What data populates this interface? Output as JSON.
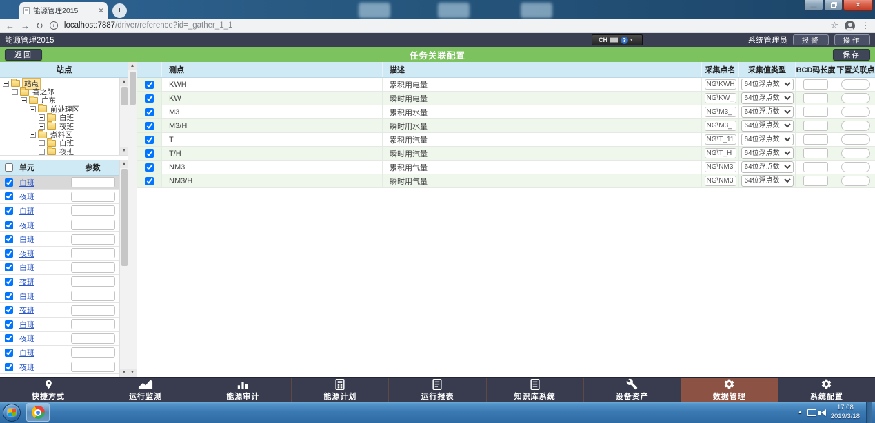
{
  "browser": {
    "tab_title": "能源管理2015",
    "url_host": "localhost:7887",
    "url_path": "/driver/reference?id=_gather_1_1"
  },
  "app_header": {
    "app_title": "能源管理2015",
    "user_role": "系统管理员",
    "alarm_button": "报警",
    "action_button": "操作",
    "ime_lang": "CH"
  },
  "toolbar": {
    "back_button": "返回",
    "page_title": "任务关联配置",
    "save_button": "保存"
  },
  "site_panel": {
    "header": "站点",
    "tree": [
      {
        "label": "站点",
        "level": 0,
        "selected": true
      },
      {
        "label": "喜之郎",
        "level": 1,
        "selected": false
      },
      {
        "label": "广东",
        "level": 2,
        "selected": false
      },
      {
        "label": "前处理区",
        "level": 3,
        "selected": false
      },
      {
        "label": "白班",
        "level": 4,
        "selected": false
      },
      {
        "label": "夜班",
        "level": 4,
        "selected": false
      },
      {
        "label": "煮料区",
        "level": 3,
        "selected": false
      },
      {
        "label": "白班",
        "level": 4,
        "selected": false
      },
      {
        "label": "夜班",
        "level": 4,
        "selected": false
      }
    ]
  },
  "unit_table": {
    "headers": {
      "unit": "单元",
      "param": "参数"
    },
    "rows": [
      {
        "unit": "白班",
        "checked": true,
        "selected": true
      },
      {
        "unit": "夜班",
        "checked": true,
        "selected": false
      },
      {
        "unit": "白班",
        "checked": true,
        "selected": false
      },
      {
        "unit": "夜班",
        "checked": true,
        "selected": false
      },
      {
        "unit": "白班",
        "checked": true,
        "selected": false
      },
      {
        "unit": "夜班",
        "checked": true,
        "selected": false
      },
      {
        "unit": "白班",
        "checked": true,
        "selected": false
      },
      {
        "unit": "夜班",
        "checked": true,
        "selected": false
      },
      {
        "unit": "白班",
        "checked": true,
        "selected": false
      },
      {
        "unit": "夜班",
        "checked": true,
        "selected": false
      },
      {
        "unit": "白班",
        "checked": true,
        "selected": false
      },
      {
        "unit": "夜班",
        "checked": true,
        "selected": false
      },
      {
        "unit": "白班",
        "checked": true,
        "selected": false
      },
      {
        "unit": "夜班",
        "checked": true,
        "selected": false
      }
    ]
  },
  "points_table": {
    "headers": {
      "point": "测点",
      "desc": "描述",
      "source": "采集点名",
      "type": "采集值类型",
      "bcd": "BCD码长度",
      "link": "下置关联点"
    },
    "rows": [
      {
        "point": "KWH",
        "desc": "累积用电量",
        "source": "NG\\KWH",
        "type": "64位浮点数",
        "checked": true
      },
      {
        "point": "KW",
        "desc": "瞬时用电量",
        "source": "NG\\KW_",
        "type": "64位浮点数",
        "checked": true
      },
      {
        "point": "M3",
        "desc": "累积用水量",
        "source": "NG\\M3_",
        "type": "64位浮点数",
        "checked": true
      },
      {
        "point": "M3/H",
        "desc": "瞬时用水量",
        "source": "NG\\M3_",
        "type": "64位浮点数",
        "checked": true
      },
      {
        "point": "T",
        "desc": "累积用汽量",
        "source": "NG\\T_11",
        "type": "64位浮点数",
        "checked": true
      },
      {
        "point": "T/H",
        "desc": "瞬时用汽量",
        "source": "NG\\T_H",
        "type": "64位浮点数",
        "checked": true
      },
      {
        "point": "NM3",
        "desc": "累积用气量",
        "source": "NG\\NM3",
        "type": "64位浮点数",
        "checked": true
      },
      {
        "point": "NM3/H",
        "desc": "瞬时用气量",
        "source": "NG\\NM3",
        "type": "64位浮点数",
        "checked": true
      }
    ]
  },
  "bottom_nav": {
    "items": [
      {
        "label": "快捷方式",
        "icon": "location-pin-icon",
        "active": false
      },
      {
        "label": "运行监测",
        "icon": "trend-chart-icon",
        "active": false
      },
      {
        "label": "能源审计",
        "icon": "bar-chart-icon",
        "active": false
      },
      {
        "label": "能源计划",
        "icon": "plan-document-icon",
        "active": false
      },
      {
        "label": "运行报表",
        "icon": "report-document-icon",
        "active": false
      },
      {
        "label": "知识库系统",
        "icon": "knowledge-document-icon",
        "active": false
      },
      {
        "label": "设备资产",
        "icon": "wrench-icon",
        "active": false
      },
      {
        "label": "数据管理",
        "icon": "gear-icon",
        "active": true
      },
      {
        "label": "系统配置",
        "icon": "gear-icon",
        "active": false
      }
    ]
  },
  "taskbar": {
    "time": "17:08",
    "date": "2019/3/18"
  },
  "colors": {
    "header_dark": "#3b3f52",
    "accent_green": "#7cc25e",
    "table_header_blue": "#cfeaf5",
    "row_alt_green": "#eff7ec",
    "active_nav_brown": "#8c5243",
    "link_blue": "#2b57c8"
  }
}
